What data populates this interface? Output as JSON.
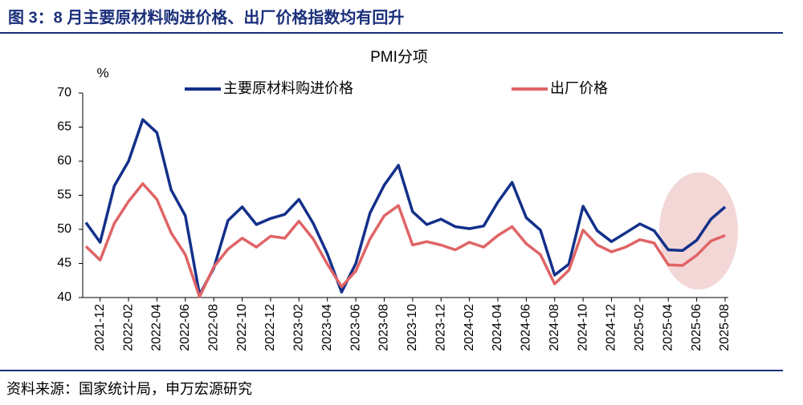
{
  "header": {
    "title": "图 3：8 月主要原材料购进价格、出厂价格指数均有回升"
  },
  "chart_data": {
    "type": "line",
    "title": "PMI分项",
    "y_label": "%",
    "categories": [
      null,
      "2021-12",
      null,
      "2022-02",
      null,
      "2022-04",
      null,
      "2022-06",
      null,
      "2022-08",
      null,
      "2022-10",
      null,
      "2022-12",
      null,
      "2023-02",
      null,
      "2023-04",
      null,
      "2023-06",
      null,
      "2023-08",
      null,
      "2023-10",
      null,
      "2023-12",
      null,
      "2024-02",
      null,
      "2024-04",
      null,
      "2024-06",
      null,
      "2024-08",
      null,
      "2024-10",
      null,
      "2024-12",
      null,
      "2025-02",
      null,
      "2025-04",
      null,
      "2025-06",
      null,
      "2025-08"
    ],
    "series": [
      {
        "name": "主要原材料购进价格",
        "color": "#13308a",
        "values": [
          51.0,
          48.1,
          56.4,
          60.0,
          66.1,
          64.2,
          55.8,
          52.0,
          40.4,
          44.3,
          51.3,
          53.3,
          50.7,
          51.6,
          52.2,
          54.4,
          50.9,
          46.4,
          40.8,
          45.0,
          52.4,
          56.5,
          59.4,
          52.6,
          50.7,
          51.5,
          50.4,
          50.1,
          50.5,
          54.0,
          56.9,
          51.7,
          49.9,
          43.3,
          44.9,
          53.4,
          49.8,
          48.2,
          49.5,
          50.8,
          49.8,
          47.0,
          46.9,
          48.4,
          51.5,
          53.3
        ]
      },
      {
        "name": "出厂价格",
        "color": "#e06466",
        "values": [
          47.5,
          45.5,
          50.9,
          54.1,
          56.7,
          54.4,
          49.5,
          46.3,
          40.1,
          44.5,
          47.1,
          48.7,
          47.4,
          49.0,
          48.7,
          51.2,
          48.6,
          44.9,
          41.6,
          43.9,
          48.6,
          52.0,
          53.5,
          47.7,
          48.2,
          47.7,
          47.0,
          48.1,
          47.4,
          49.1,
          50.4,
          47.9,
          46.3,
          42.0,
          44.0,
          49.9,
          47.7,
          46.7,
          47.4,
          48.5,
          48.0,
          44.8,
          44.7,
          46.2,
          48.3,
          49.1
        ]
      }
    ],
    "ylim": [
      40,
      70
    ],
    "yticks": [
      40,
      45,
      50,
      55,
      60,
      65,
      70
    ]
  },
  "footer": {
    "source": "资料来源：国家统计局，申万宏源研究"
  }
}
